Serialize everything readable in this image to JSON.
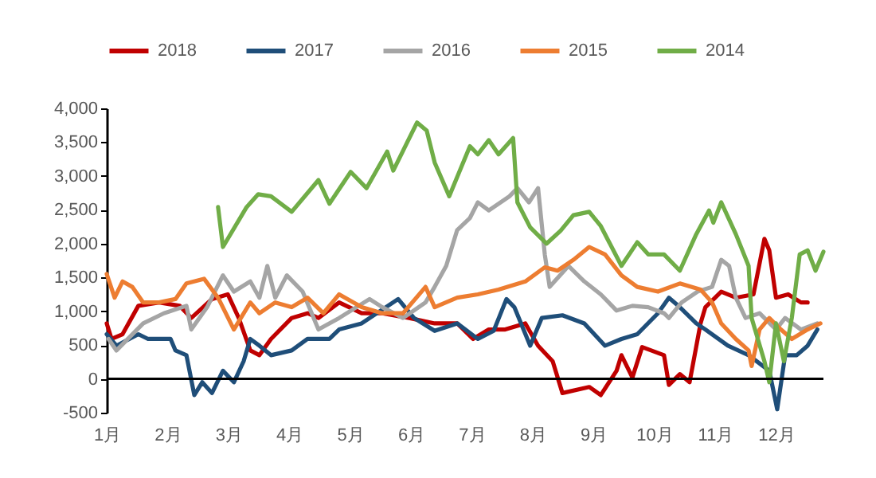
{
  "chart_data": {
    "type": "line",
    "legend": "top",
    "xlim": [
      1,
      12.78
    ],
    "xticks": [
      {
        "value": 1,
        "label": "1月"
      },
      {
        "value": 2,
        "label": "2月"
      },
      {
        "value": 3,
        "label": "3月"
      },
      {
        "value": 4,
        "label": "4月"
      },
      {
        "value": 5,
        "label": "5月"
      },
      {
        "value": 6,
        "label": "6月"
      },
      {
        "value": 7,
        "label": "7月"
      },
      {
        "value": 8,
        "label": "8月"
      },
      {
        "value": 9,
        "label": "9月"
      },
      {
        "value": 10,
        "label": "10月"
      },
      {
        "value": 11,
        "label": "11月"
      },
      {
        "value": 12,
        "label": "12月"
      }
    ],
    "ylim": [
      -500,
      4000
    ],
    "yticks": [
      {
        "value": -500,
        "label": "-500"
      },
      {
        "value": 0,
        "label": "0"
      },
      {
        "value": 500,
        "label": "500"
      },
      {
        "value": 1000,
        "label": "1,000"
      },
      {
        "value": 1500,
        "label": "1,500"
      },
      {
        "value": 2000,
        "label": "2,000"
      },
      {
        "value": 2500,
        "label": "2,500"
      },
      {
        "value": 3000,
        "label": "3,000"
      },
      {
        "value": 3500,
        "label": "3,500"
      },
      {
        "value": 4000,
        "label": "4,000"
      }
    ],
    "ref_lines": [
      {
        "axis": "y",
        "value": 0,
        "color": "#000000"
      }
    ],
    "series": [
      {
        "name": "2018",
        "color": "#c00000",
        "x": [
          1.0,
          1.08,
          1.26,
          1.52,
          1.86,
          2.2,
          2.39,
          2.73,
          2.99,
          3.17,
          3.36,
          3.51,
          3.7,
          4.04,
          4.3,
          4.48,
          4.82,
          5.19,
          5.53,
          5.97,
          6.39,
          6.76,
          7.02,
          7.28,
          7.55,
          7.88,
          8.09,
          8.33,
          8.49,
          8.93,
          9.12,
          9.38,
          9.46,
          9.64,
          9.8,
          10.16,
          10.24,
          10.42,
          10.58,
          10.63,
          10.76,
          10.84,
          11.1,
          11.34,
          11.63,
          11.81,
          11.89,
          12.0,
          12.2,
          12.41,
          12.52
        ],
        "values": [
          820,
          590,
          660,
          1080,
          1130,
          1080,
          900,
          1180,
          1250,
          900,
          420,
          350,
          590,
          900,
          970,
          900,
          1130,
          970,
          970,
          900,
          820,
          820,
          590,
          730,
          730,
          820,
          490,
          260,
          -210,
          -120,
          -240,
          120,
          350,
          20,
          470,
          350,
          -90,
          70,
          -50,
          190,
          820,
          1060,
          1290,
          1200,
          1250,
          2070,
          1900,
          1200,
          1250,
          1130,
          1130
        ]
      },
      {
        "name": "2017",
        "color": "#1f4e79",
        "x": [
          1.0,
          1.16,
          1.52,
          1.68,
          2.05,
          2.13,
          2.31,
          2.44,
          2.57,
          2.73,
          2.91,
          3.09,
          3.25,
          3.36,
          3.51,
          3.7,
          4.04,
          4.3,
          4.66,
          4.82,
          5.19,
          5.79,
          6.05,
          6.39,
          6.76,
          7.1,
          7.36,
          7.57,
          7.7,
          7.96,
          8.15,
          8.49,
          8.85,
          9.19,
          9.46,
          9.72,
          10.06,
          10.24,
          10.42,
          10.69,
          10.84,
          11.21,
          11.55,
          11.89,
          12.02,
          12.15,
          12.34,
          12.52,
          12.68
        ],
        "values": [
          660,
          490,
          660,
          590,
          590,
          420,
          350,
          -240,
          -50,
          -210,
          120,
          -50,
          260,
          590,
          490,
          350,
          420,
          590,
          590,
          730,
          820,
          1180,
          900,
          710,
          820,
          590,
          710,
          1180,
          1060,
          490,
          900,
          940,
          820,
          490,
          590,
          660,
          970,
          1200,
          1060,
          820,
          730,
          490,
          350,
          120,
          -450,
          350,
          350,
          490,
          730
        ]
      },
      {
        "name": "2016",
        "color": "#a5a5a5",
        "x": [
          1.03,
          1.16,
          1.6,
          1.94,
          2.31,
          2.39,
          2.65,
          2.91,
          3.09,
          3.36,
          3.51,
          3.64,
          3.77,
          3.96,
          4.22,
          4.48,
          4.82,
          5.32,
          5.53,
          5.87,
          6.24,
          6.39,
          6.58,
          6.76,
          6.97,
          7.1,
          7.28,
          7.62,
          7.75,
          7.94,
          8.09,
          8.2,
          8.28,
          8.59,
          8.85,
          9.12,
          9.38,
          9.64,
          9.9,
          10.16,
          10.24,
          10.45,
          10.71,
          10.95,
          11.1,
          11.23,
          11.34,
          11.5,
          11.73,
          12.0,
          12.15,
          12.41,
          12.68
        ],
        "values": [
          590,
          420,
          820,
          970,
          1080,
          730,
          1060,
          1530,
          1290,
          1440,
          1200,
          1670,
          1200,
          1530,
          1290,
          730,
          900,
          1180,
          1060,
          900,
          1130,
          1360,
          1670,
          2200,
          2380,
          2610,
          2490,
          2700,
          2820,
          2610,
          2820,
          1840,
          1360,
          1670,
          1440,
          1250,
          1010,
          1080,
          1060,
          970,
          900,
          1130,
          1290,
          1360,
          1760,
          1670,
          1200,
          900,
          970,
          730,
          900,
          730,
          820
        ]
      },
      {
        "name": "2015",
        "color": "#ed7d31",
        "x": [
          1.0,
          1.13,
          1.26,
          1.42,
          1.6,
          1.86,
          2.13,
          2.31,
          2.6,
          2.83,
          3.09,
          3.36,
          3.51,
          3.77,
          4.04,
          4.3,
          4.56,
          4.82,
          5.19,
          5.53,
          5.87,
          6.24,
          6.39,
          6.76,
          7.1,
          7.44,
          7.88,
          8.2,
          8.41,
          8.67,
          8.93,
          9.19,
          9.46,
          9.72,
          10.06,
          10.42,
          10.76,
          10.95,
          11.1,
          11.34,
          11.55,
          11.6,
          11.73,
          11.89,
          12.08,
          12.26,
          12.52,
          12.73
        ],
        "values": [
          1550,
          1200,
          1440,
          1360,
          1130,
          1130,
          1180,
          1410,
          1480,
          1200,
          730,
          1130,
          970,
          1130,
          1060,
          1200,
          970,
          1250,
          1060,
          970,
          970,
          1360,
          1060,
          1200,
          1250,
          1320,
          1440,
          1650,
          1600,
          1760,
          1950,
          1840,
          1530,
          1360,
          1290,
          1410,
          1320,
          1130,
          820,
          590,
          420,
          190,
          730,
          900,
          730,
          590,
          730,
          820
        ]
      },
      {
        "name": "2014",
        "color": "#70ad47",
        "x": [
          2.83,
          2.91,
          3.3,
          3.49,
          3.7,
          4.04,
          4.48,
          4.66,
          5.01,
          5.27,
          5.61,
          5.71,
          6.1,
          6.26,
          6.39,
          6.63,
          6.97,
          7.1,
          7.28,
          7.44,
          7.68,
          7.75,
          7.96,
          8.23,
          8.46,
          8.67,
          8.93,
          9.12,
          9.46,
          9.72,
          9.9,
          10.16,
          10.42,
          10.69,
          10.9,
          10.97,
          11.1,
          11.34,
          11.55,
          11.6,
          11.81,
          11.89,
          12.0,
          12.13,
          12.26,
          12.39,
          12.52,
          12.65,
          12.78
        ],
        "values": [
          2540,
          1950,
          2540,
          2730,
          2700,
          2470,
          2940,
          2590,
          3060,
          2820,
          3360,
          3080,
          3790,
          3670,
          3200,
          2700,
          3440,
          3320,
          3530,
          3320,
          3560,
          2610,
          2240,
          2000,
          2190,
          2420,
          2470,
          2260,
          1670,
          2020,
          1840,
          1840,
          1600,
          2140,
          2490,
          2310,
          2610,
          2140,
          1670,
          900,
          260,
          -50,
          820,
          260,
          900,
          1840,
          1900,
          1600,
          1880
        ]
      }
    ]
  }
}
